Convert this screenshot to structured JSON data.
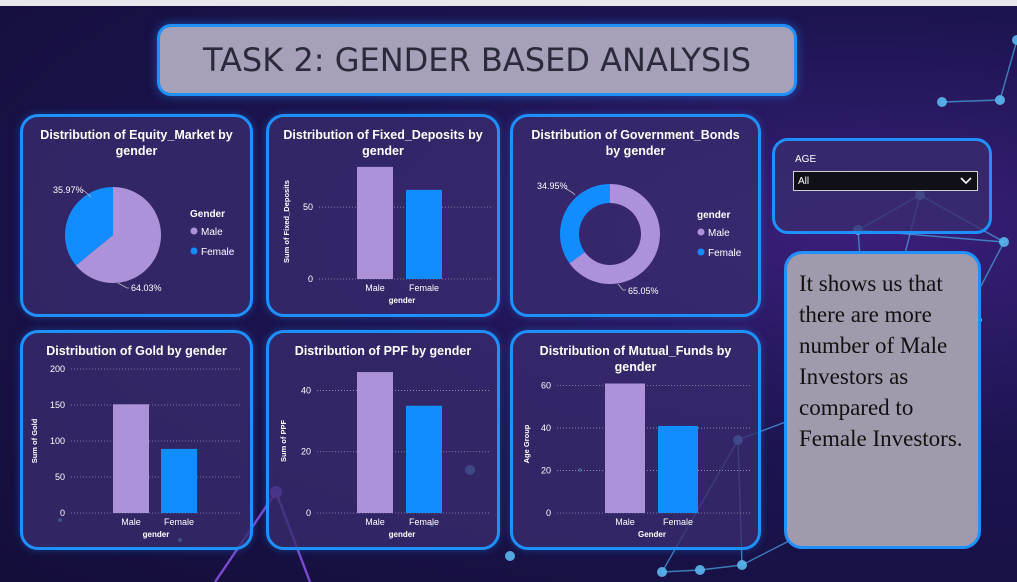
{
  "title": "TASK 2: GENDER BASED ANALYSIS",
  "colors": {
    "male": "#ac92d9",
    "female": "#118dff",
    "border": "#1e90ff"
  },
  "slicer": {
    "label": "AGE",
    "value": "All"
  },
  "note": "It shows us that there are more number of Male Investors as compared to Female Investors.",
  "chart_data": [
    {
      "id": "equity",
      "type": "pie",
      "title": "Distribution of Equity_Market by gender",
      "legend_title": "Gender",
      "legend": [
        "Male",
        "Female"
      ],
      "values": [
        64.03,
        35.97
      ],
      "labels": [
        "64.03%",
        "35.97%"
      ]
    },
    {
      "id": "fixed",
      "type": "bar",
      "title": "Distribution of Fixed_Deposits by gender",
      "categories": [
        "Male",
        "Female"
      ],
      "values": [
        78,
        62
      ],
      "xlabel": "gender",
      "ylabel": "Sum of Fixed_Deposits",
      "ylim": [
        0,
        80
      ],
      "yticks": [
        0,
        50
      ],
      "ytick_labels": [
        "0",
        "50"
      ]
    },
    {
      "id": "govt",
      "type": "pie",
      "donut": true,
      "title": "Distribution of Government_Bonds by gender",
      "legend_title": "gender",
      "legend": [
        "Male",
        "Female"
      ],
      "values": [
        65.05,
        34.95
      ],
      "labels": [
        "65.05%",
        "34.95%"
      ]
    },
    {
      "id": "gold",
      "type": "bar",
      "title": "Distribution of Gold by gender",
      "categories": [
        "Male",
        "Female"
      ],
      "values": [
        151,
        89
      ],
      "xlabel": "gender",
      "ylabel": "Sum of Gold",
      "ylim": [
        0,
        200
      ],
      "yticks": [
        0,
        50,
        100,
        150,
        200
      ],
      "ytick_labels": [
        "0",
        "50",
        "100",
        "150",
        "200"
      ]
    },
    {
      "id": "ppf",
      "type": "bar",
      "title": "Distribution of PPF by gender",
      "categories": [
        "Male",
        "Female"
      ],
      "values": [
        46,
        35
      ],
      "xlabel": "gender",
      "ylabel": "Sum of PPF",
      "ylim": [
        0,
        47
      ],
      "yticks": [
        0,
        20,
        40
      ],
      "ytick_labels": [
        "0",
        "20",
        "40"
      ]
    },
    {
      "id": "mutual",
      "type": "bar",
      "title": "Distribution of Mutual_Funds by gender",
      "categories": [
        "Male",
        "Female"
      ],
      "values": [
        61,
        41
      ],
      "xlabel": "Gender",
      "ylabel": "Age Group",
      "ylim": [
        0,
        65
      ],
      "yticks": [
        0,
        20,
        40,
        60
      ],
      "ytick_labels": [
        "0",
        "20",
        "40",
        "60"
      ]
    }
  ]
}
